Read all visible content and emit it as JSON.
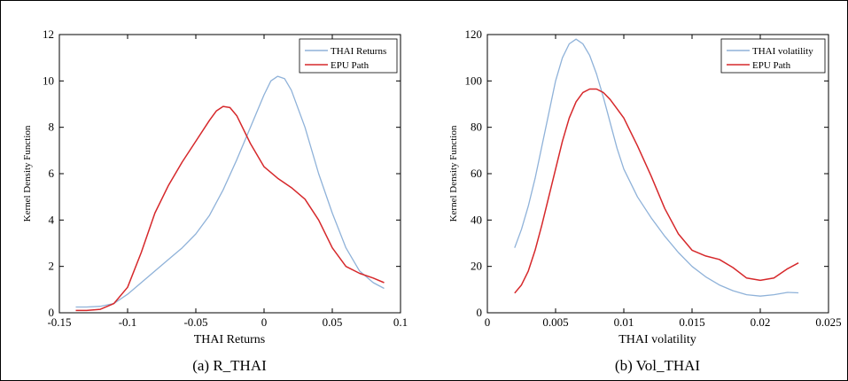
{
  "colors": {
    "series_blue": "#8fb2d9",
    "series_red": "#d6282b",
    "axis": "#000000"
  },
  "chart_data": [
    {
      "type": "line",
      "caption": "(a) R_THAI",
      "xlabel": "THAI Returns",
      "ylabel": "Kernel Density Function",
      "xlim": [
        -0.15,
        0.1
      ],
      "ylim": [
        0,
        12
      ],
      "xticks": [
        -0.15,
        -0.1,
        -0.05,
        0,
        0.05,
        0.1
      ],
      "xtick_labels": [
        "-0.15",
        "-0.1",
        "-0.05",
        "0",
        "0.05",
        "0.1"
      ],
      "yticks": [
        0,
        2,
        4,
        6,
        8,
        10,
        12
      ],
      "ytick_labels": [
        "0",
        "2",
        "4",
        "6",
        "8",
        "10",
        "12"
      ],
      "legend_position": "top-right",
      "series": [
        {
          "name": "THAI Returns",
          "color": "#8fb2d9",
          "x": [
            -0.138,
            -0.13,
            -0.12,
            -0.11,
            -0.1,
            -0.09,
            -0.08,
            -0.07,
            -0.06,
            -0.05,
            -0.04,
            -0.03,
            -0.02,
            -0.01,
            0.0,
            0.005,
            0.01,
            0.015,
            0.02,
            0.03,
            0.04,
            0.05,
            0.06,
            0.07,
            0.08,
            0.088
          ],
          "y": [
            0.25,
            0.25,
            0.28,
            0.4,
            0.8,
            1.3,
            1.8,
            2.3,
            2.8,
            3.4,
            4.2,
            5.3,
            6.6,
            8.0,
            9.4,
            10.0,
            10.2,
            10.1,
            9.6,
            8.0,
            6.0,
            4.3,
            2.8,
            1.8,
            1.3,
            1.05
          ]
        },
        {
          "name": "EPU Path",
          "color": "#d6282b",
          "x": [
            -0.138,
            -0.13,
            -0.12,
            -0.11,
            -0.1,
            -0.09,
            -0.08,
            -0.07,
            -0.06,
            -0.05,
            -0.04,
            -0.035,
            -0.03,
            -0.025,
            -0.02,
            -0.01,
            0.0,
            0.01,
            0.02,
            0.03,
            0.04,
            0.05,
            0.06,
            0.07,
            0.08,
            0.088
          ],
          "y": [
            0.1,
            0.1,
            0.15,
            0.4,
            1.1,
            2.6,
            4.3,
            5.5,
            6.5,
            7.4,
            8.3,
            8.7,
            8.9,
            8.85,
            8.5,
            7.3,
            6.3,
            5.8,
            5.4,
            4.9,
            4.0,
            2.8,
            2.0,
            1.7,
            1.5,
            1.3
          ]
        }
      ]
    },
    {
      "type": "line",
      "caption": "(b) Vol_THAI",
      "xlabel": "THAI volatility",
      "ylabel": "Kernel Density Function",
      "xlim": [
        0,
        0.025
      ],
      "ylim": [
        0,
        120
      ],
      "xticks": [
        0,
        0.005,
        0.01,
        0.015,
        0.02,
        0.025
      ],
      "xtick_labels": [
        "0",
        "0.005",
        "0.01",
        "0.015",
        "0.02",
        "0.025"
      ],
      "yticks": [
        0,
        20,
        40,
        60,
        80,
        100,
        120
      ],
      "ytick_labels": [
        "0",
        "20",
        "40",
        "60",
        "80",
        "100",
        "120"
      ],
      "legend_position": "top-right",
      "series": [
        {
          "name": "THAI volatility",
          "color": "#8fb2d9",
          "x": [
            0.002,
            0.0025,
            0.003,
            0.0035,
            0.004,
            0.0045,
            0.005,
            0.0055,
            0.006,
            0.0065,
            0.007,
            0.0075,
            0.008,
            0.0085,
            0.009,
            0.0095,
            0.01,
            0.011,
            0.012,
            0.013,
            0.014,
            0.015,
            0.016,
            0.017,
            0.018,
            0.019,
            0.02,
            0.021,
            0.022,
            0.0228
          ],
          "y": [
            28,
            36,
            46,
            58,
            72,
            86,
            100,
            110,
            116,
            118,
            116,
            111,
            103,
            93,
            82,
            71,
            62,
            50,
            41,
            33,
            26,
            20,
            15.5,
            12,
            9.5,
            7.8,
            7.2,
            7.8,
            8.8,
            8.6
          ]
        },
        {
          "name": "EPU Path",
          "color": "#d6282b",
          "x": [
            0.002,
            0.0025,
            0.003,
            0.0035,
            0.004,
            0.0045,
            0.005,
            0.0055,
            0.006,
            0.0065,
            0.007,
            0.0075,
            0.008,
            0.0085,
            0.009,
            0.0095,
            0.01,
            0.0105,
            0.011,
            0.012,
            0.013,
            0.014,
            0.015,
            0.016,
            0.017,
            0.018,
            0.019,
            0.02,
            0.021,
            0.022,
            0.0228
          ],
          "y": [
            8.5,
            12,
            18,
            27,
            38,
            50,
            62,
            74,
            84,
            91,
            95,
            96.5,
            96.5,
            95,
            92,
            88,
            84,
            78,
            72,
            59,
            45,
            34,
            27,
            24.5,
            23,
            19.5,
            15,
            14,
            15,
            19,
            21.5
          ]
        }
      ]
    }
  ]
}
